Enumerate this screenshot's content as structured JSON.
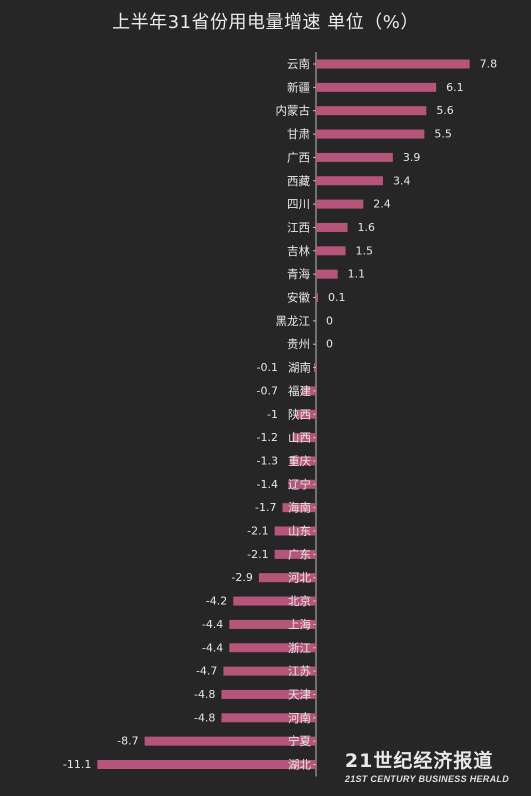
{
  "title": "上半年31省份用电量增速 单位（%）",
  "watermark": {
    "main": "21世纪经济报道",
    "sub": "21ST CENTURY BUSINESS HERALD"
  },
  "colors": {
    "background": "#262626",
    "bar": "#b5557a",
    "axis": "#bdbdbd",
    "text": "#e6e6e6"
  },
  "chart_data": {
    "type": "bar",
    "orientation": "horizontal",
    "categories": [
      "云南",
      "新疆",
      "内蒙古",
      "甘肃",
      "广西",
      "西藏",
      "四川",
      "江西",
      "吉林",
      "青海",
      "安徽",
      "黑龙江",
      "贵州",
      "湖南",
      "福建",
      "陕西",
      "山西",
      "重庆",
      "辽宁",
      "海南",
      "山东",
      "广东",
      "河北",
      "北京",
      "上海",
      "浙江",
      "江苏",
      "天津",
      "河南",
      "宁夏",
      "湖北"
    ],
    "values": [
      7.8,
      6.1,
      5.6,
      5.5,
      3.9,
      3.4,
      2.4,
      1.6,
      1.5,
      1.1,
      0.1,
      0,
      0,
      -0.1,
      -0.7,
      -1,
      -1.2,
      -1.3,
      -1.4,
      -1.7,
      -2.1,
      -2.1,
      -2.9,
      -4.2,
      -4.4,
      -4.4,
      -4.7,
      -4.8,
      -4.8,
      -8.7,
      -11.1
    ],
    "value_labels": [
      "7.8",
      "6.1",
      "5.6",
      "5.5",
      "3.9",
      "3.4",
      "2.4",
      "1.6",
      "1.5",
      "1.1",
      "0.1",
      "0",
      "0",
      "-0.1",
      "-0.7",
      "-1",
      "-1.2",
      "-1.3",
      "-1.4",
      "-1.7",
      "-2.1",
      "-2.1",
      "-2.9",
      "-4.2",
      "-4.4",
      "-4.4",
      "-4.7",
      "-4.8",
      "-4.8",
      "-8.7",
      "-11.1"
    ],
    "xlim": [
      -12.5,
      9.5
    ],
    "grid": false,
    "legend": "none"
  }
}
